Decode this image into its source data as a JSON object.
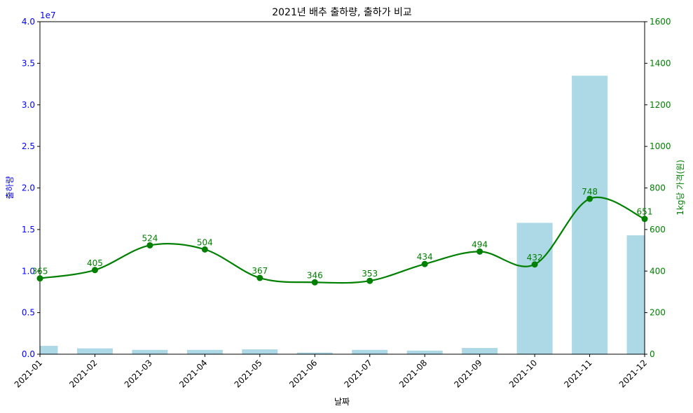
{
  "chart_data": {
    "type": "bar",
    "title": "2021년 배추 출하량, 출하가 비교",
    "xlabel": "날짜",
    "categories": [
      "2021-01",
      "2021-02",
      "2021-03",
      "2021-04",
      "2021-05",
      "2021-06",
      "2021-07",
      "2021-08",
      "2021-09",
      "2021-10",
      "2021-11",
      "2021-12"
    ],
    "series": [
      {
        "type": "bar",
        "axis": "left",
        "values": [
          1000000,
          700000,
          520000,
          520000,
          580000,
          200000,
          520000,
          430000,
          750000,
          15800000,
          33500000,
          14300000
        ],
        "color": "#add8e6"
      },
      {
        "type": "line",
        "axis": "right",
        "smooth": true,
        "values": [
          365,
          405,
          524,
          504,
          367,
          346,
          353,
          434,
          494,
          432,
          748,
          651
        ],
        "data_labels": [
          "365",
          "405",
          "524",
          "504",
          "367",
          "346",
          "353",
          "434",
          "494",
          "432",
          "748",
          "651"
        ],
        "color": "#008000"
      }
    ],
    "y_left": {
      "label": "출하량",
      "lim": [
        0,
        40000000
      ],
      "ticks": [
        0,
        5000000,
        10000000,
        15000000,
        20000000,
        25000000,
        30000000,
        35000000,
        40000000
      ],
      "tick_labels": [
        "0.0",
        "0.5",
        "1.0",
        "1.5",
        "2.0",
        "2.5",
        "3.0",
        "3.5",
        "4.0"
      ],
      "offset_label": "1e7",
      "color": "#0000ff"
    },
    "y_right": {
      "label": "1kg당 가격(원)",
      "lim": [
        0,
        1600
      ],
      "ticks": [
        0,
        200,
        400,
        600,
        800,
        1000,
        1200,
        1400,
        1600
      ],
      "tick_labels": [
        "0",
        "200",
        "400",
        "600",
        "800",
        "1000",
        "1200",
        "1400",
        "1600"
      ],
      "color": "#008000"
    },
    "grid": false,
    "legend": "none"
  }
}
